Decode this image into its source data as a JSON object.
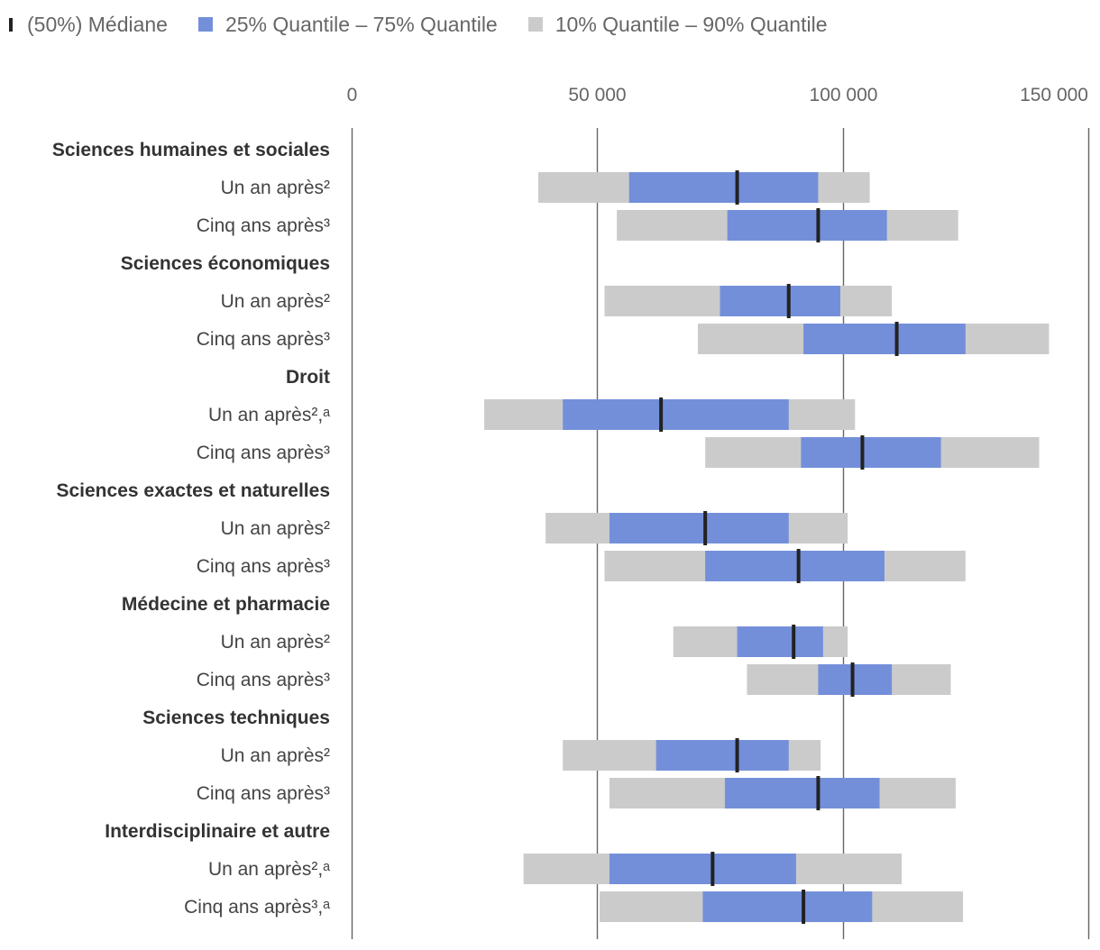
{
  "chart_data": {
    "type": "bar",
    "subtype": "floating-range (quantile ranges with median marker)",
    "legend": {
      "median": "(50%) Médiane",
      "inner": "25% Quantile – 75% Quantile",
      "outer": "10% Quantile – 90% Quantile",
      "placement": "top-left"
    },
    "colors": {
      "inner": "#748fda",
      "outer": "#cbcbcb",
      "median": "#222222",
      "grid": "#666666"
    },
    "xlim": [
      0,
      150000
    ],
    "xticks": [
      0,
      50000,
      100000,
      150000
    ],
    "xtick_labels": [
      "0",
      "50 000",
      "100 000",
      "150 000"
    ],
    "groups": [
      {
        "name": "Sciences humaines et sociales",
        "rows": [
          {
            "label": "Un an après²",
            "q10": 38000,
            "q25": 56500,
            "median": 78500,
            "q75": 95000,
            "q90": 105500
          },
          {
            "label": "Cinq ans après³",
            "q10": 54000,
            "q25": 76500,
            "median": 95000,
            "q75": 109000,
            "q90": 123500
          }
        ]
      },
      {
        "name": "Sciences économiques",
        "rows": [
          {
            "label": "Un an après²",
            "q10": 51500,
            "q25": 75000,
            "median": 89000,
            "q75": 99500,
            "q90": 110000
          },
          {
            "label": "Cinq ans après³",
            "q10": 70500,
            "q25": 92000,
            "median": 111000,
            "q75": 125000,
            "q90": 142000
          }
        ]
      },
      {
        "name": "Droit",
        "rows": [
          {
            "label": "Un an après²,ᵃ",
            "q10": 27000,
            "q25": 43000,
            "median": 63000,
            "q75": 89000,
            "q90": 102500
          },
          {
            "label": "Cinq ans après³",
            "q10": 72000,
            "q25": 91500,
            "median": 104000,
            "q75": 120000,
            "q90": 140000
          }
        ]
      },
      {
        "name": "Sciences exactes et naturelles",
        "rows": [
          {
            "label": "Un an après²",
            "q10": 39500,
            "q25": 52500,
            "median": 72000,
            "q75": 89000,
            "q90": 101000
          },
          {
            "label": "Cinq ans après³",
            "q10": 51500,
            "q25": 72000,
            "median": 91000,
            "q75": 108500,
            "q90": 125000
          }
        ]
      },
      {
        "name": "Médecine et pharmacie",
        "rows": [
          {
            "label": "Un an après²",
            "q10": 65500,
            "q25": 78500,
            "median": 90000,
            "q75": 96000,
            "q90": 101000
          },
          {
            "label": "Cinq ans après³",
            "q10": 80500,
            "q25": 95000,
            "median": 102000,
            "q75": 110000,
            "q90": 122000
          }
        ]
      },
      {
        "name": "Sciences techniques",
        "rows": [
          {
            "label": "Un an après²",
            "q10": 43000,
            "q25": 62000,
            "median": 78500,
            "q75": 89000,
            "q90": 95500
          },
          {
            "label": "Cinq ans après³",
            "q10": 52500,
            "q25": 76000,
            "median": 95000,
            "q75": 107500,
            "q90": 123000
          }
        ]
      },
      {
        "name": "Interdisciplinaire et autre",
        "rows": [
          {
            "label": "Un an après²,ᵃ",
            "q10": 35000,
            "q25": 52500,
            "median": 73500,
            "q75": 90500,
            "q90": 112000
          },
          {
            "label": "Cinq ans après³,ᵃ",
            "q10": 50500,
            "q25": 71500,
            "median": 92000,
            "q75": 106000,
            "q90": 124500
          }
        ]
      }
    ]
  }
}
